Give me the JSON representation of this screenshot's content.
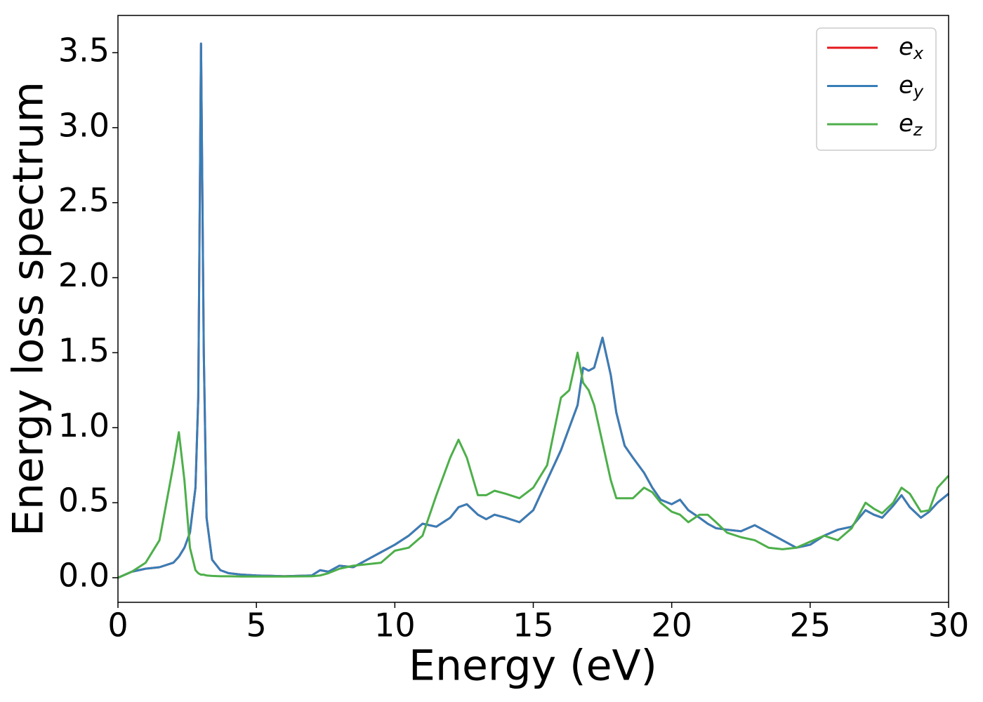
{
  "chart_data": {
    "type": "line",
    "xlabel": "Energy (eV)",
    "ylabel": "Energy loss spectrum",
    "x": [
      0,
      0.5,
      1,
      1.5,
      2,
      2.2,
      2.4,
      2.6,
      2.8,
      2.9,
      3.0,
      3.1,
      3.2,
      3.4,
      3.7,
      4,
      4.5,
      5,
      6,
      7,
      7.3,
      7.6,
      8,
      8.5,
      9,
      9.5,
      10,
      10.5,
      11,
      11.5,
      12,
      12.3,
      12.6,
      13,
      13.3,
      13.6,
      14,
      14.5,
      15,
      15.5,
      16,
      16.3,
      16.6,
      16.8,
      17,
      17.2,
      17.5,
      17.8,
      18,
      18.3,
      18.6,
      19,
      19.3,
      19.6,
      20,
      20.3,
      20.6,
      21,
      21.3,
      21.6,
      22,
      22.5,
      23,
      23.5,
      24,
      24.5,
      25,
      25.5,
      26,
      26.5,
      27,
      27.3,
      27.6,
      28,
      28.3,
      28.6,
      29,
      29.3,
      29.6,
      30
    ],
    "series": [
      {
        "name": "ex",
        "color": "#e41a1c",
        "values": [
          0,
          0.04,
          0.06,
          0.07,
          0.1,
          0.14,
          0.2,
          0.3,
          0.6,
          1.2,
          3.56,
          1.5,
          0.4,
          0.12,
          0.05,
          0.03,
          0.02,
          0.015,
          0.01,
          0.015,
          0.05,
          0.04,
          0.08,
          0.07,
          0.12,
          0.17,
          0.22,
          0.28,
          0.36,
          0.34,
          0.4,
          0.47,
          0.49,
          0.42,
          0.39,
          0.42,
          0.4,
          0.37,
          0.45,
          0.65,
          0.85,
          1.0,
          1.15,
          1.4,
          1.38,
          1.4,
          1.6,
          1.35,
          1.1,
          0.88,
          0.8,
          0.7,
          0.6,
          0.52,
          0.49,
          0.52,
          0.45,
          0.4,
          0.36,
          0.33,
          0.32,
          0.31,
          0.35,
          0.3,
          0.25,
          0.2,
          0.22,
          0.28,
          0.32,
          0.34,
          0.45,
          0.42,
          0.4,
          0.48,
          0.55,
          0.47,
          0.4,
          0.44,
          0.5,
          0.56
        ]
      },
      {
        "name": "ey",
        "color": "#377eb8",
        "values": [
          0,
          0.04,
          0.06,
          0.07,
          0.1,
          0.14,
          0.2,
          0.3,
          0.6,
          1.2,
          3.56,
          1.5,
          0.4,
          0.12,
          0.05,
          0.03,
          0.02,
          0.015,
          0.01,
          0.015,
          0.05,
          0.04,
          0.08,
          0.07,
          0.12,
          0.17,
          0.22,
          0.28,
          0.36,
          0.34,
          0.4,
          0.47,
          0.49,
          0.42,
          0.39,
          0.42,
          0.4,
          0.37,
          0.45,
          0.65,
          0.85,
          1.0,
          1.15,
          1.4,
          1.38,
          1.4,
          1.6,
          1.35,
          1.1,
          0.88,
          0.8,
          0.7,
          0.6,
          0.52,
          0.49,
          0.52,
          0.45,
          0.4,
          0.36,
          0.33,
          0.32,
          0.31,
          0.35,
          0.3,
          0.25,
          0.2,
          0.22,
          0.28,
          0.32,
          0.34,
          0.45,
          0.42,
          0.4,
          0.48,
          0.55,
          0.47,
          0.4,
          0.44,
          0.5,
          0.56
        ]
      },
      {
        "name": "ez",
        "color": "#4daf4a",
        "values": [
          0,
          0.04,
          0.1,
          0.25,
          0.75,
          0.97,
          0.65,
          0.2,
          0.05,
          0.03,
          0.02,
          0.02,
          0.015,
          0.012,
          0.01,
          0.01,
          0.008,
          0.008,
          0.008,
          0.01,
          0.015,
          0.03,
          0.06,
          0.08,
          0.09,
          0.1,
          0.18,
          0.2,
          0.28,
          0.55,
          0.8,
          0.92,
          0.8,
          0.55,
          0.55,
          0.58,
          0.56,
          0.53,
          0.6,
          0.75,
          1.2,
          1.25,
          1.5,
          1.3,
          1.25,
          1.15,
          0.9,
          0.65,
          0.53,
          0.53,
          0.53,
          0.6,
          0.57,
          0.5,
          0.44,
          0.42,
          0.37,
          0.42,
          0.42,
          0.37,
          0.3,
          0.27,
          0.25,
          0.2,
          0.19,
          0.2,
          0.24,
          0.28,
          0.25,
          0.33,
          0.5,
          0.46,
          0.43,
          0.5,
          0.6,
          0.56,
          0.44,
          0.45,
          0.6,
          0.68
        ]
      }
    ],
    "xlim": [
      0,
      30
    ],
    "xticks": [
      0,
      5,
      10,
      15,
      20,
      25,
      30
    ],
    "ylim": [
      -0.164,
      3.748
    ],
    "yticks": [
      {
        "value": 0,
        "label": "0.0"
      },
      0.5,
      {
        "value": 1,
        "label": "1.0"
      },
      1.5,
      {
        "value": 2,
        "label": "2.0"
      },
      2.5,
      {
        "value": 3,
        "label": "3.0"
      },
      3.5
    ],
    "grid": false,
    "legend": "upper right"
  }
}
